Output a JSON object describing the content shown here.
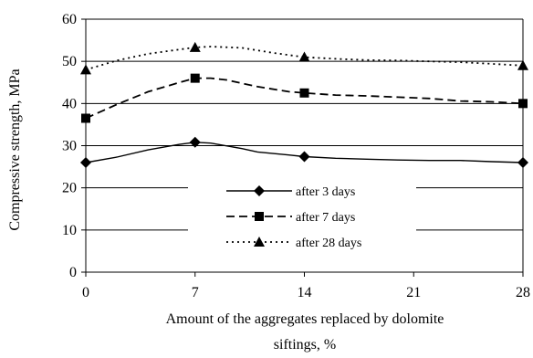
{
  "chart_data": {
    "type": "line",
    "xlabel_line1": "Amount of the aggregates replaced by dolomite",
    "xlabel_line2": "siftings, %",
    "ylabel": "Compressive strength, MPa",
    "x_ticks": [
      "0",
      "7",
      "14",
      "21",
      "28"
    ],
    "y_ticks": [
      "0",
      "10",
      "20",
      "30",
      "40",
      "50",
      "60"
    ],
    "xlim": [
      0,
      28
    ],
    "ylim": [
      0,
      60
    ],
    "grid": "horizontal",
    "legend_position": "center-bottom",
    "series": [
      {
        "name": "after 3 days",
        "line_style": "solid",
        "marker": "diamond",
        "points": [
          [
            0,
            26
          ],
          [
            7,
            30.8
          ],
          [
            14,
            27.4
          ],
          [
            28,
            26
          ]
        ],
        "curve": [
          [
            0,
            26
          ],
          [
            2,
            27.3
          ],
          [
            4,
            29
          ],
          [
            6,
            30.3
          ],
          [
            7,
            30.8
          ],
          [
            8,
            30.6
          ],
          [
            10,
            29.3
          ],
          [
            11,
            28.5
          ],
          [
            13,
            27.8
          ],
          [
            14,
            27.4
          ],
          [
            16,
            27
          ],
          [
            18,
            26.8
          ],
          [
            20,
            26.6
          ],
          [
            22,
            26.5
          ],
          [
            24,
            26.5
          ],
          [
            26,
            26.2
          ],
          [
            28,
            26
          ]
        ]
      },
      {
        "name": "after 7 days",
        "line_style": "dashed",
        "marker": "square",
        "points": [
          [
            0,
            36.5
          ],
          [
            7,
            46
          ],
          [
            14,
            42.5
          ],
          [
            28,
            40
          ]
        ],
        "curve": [
          [
            0,
            36.5
          ],
          [
            2,
            39.8
          ],
          [
            4,
            42.8
          ],
          [
            6,
            45
          ],
          [
            7,
            46
          ],
          [
            8,
            46
          ],
          [
            9,
            45.6
          ],
          [
            11,
            44
          ],
          [
            13,
            42.8
          ],
          [
            14,
            42.5
          ],
          [
            16,
            42
          ],
          [
            18,
            41.8
          ],
          [
            20,
            41.5
          ],
          [
            22,
            41.2
          ],
          [
            24,
            40.6
          ],
          [
            26,
            40.4
          ],
          [
            28,
            40
          ]
        ]
      },
      {
        "name": "after 28 days",
        "line_style": "dotted",
        "marker": "triangle",
        "points": [
          [
            0,
            48
          ],
          [
            7,
            53.3
          ],
          [
            14,
            51
          ],
          [
            28,
            49
          ]
        ],
        "curve": [
          [
            0,
            48
          ],
          [
            2,
            50.2
          ],
          [
            4,
            51.8
          ],
          [
            6,
            52.8
          ],
          [
            7,
            53.3
          ],
          [
            8,
            53.5
          ],
          [
            10,
            53.2
          ],
          [
            12,
            52
          ],
          [
            14,
            51
          ],
          [
            16,
            50.6
          ],
          [
            18,
            50.3
          ],
          [
            20,
            50.2
          ],
          [
            22,
            50
          ],
          [
            24,
            49.8
          ],
          [
            26,
            49.4
          ],
          [
            28,
            49
          ]
        ]
      }
    ]
  }
}
